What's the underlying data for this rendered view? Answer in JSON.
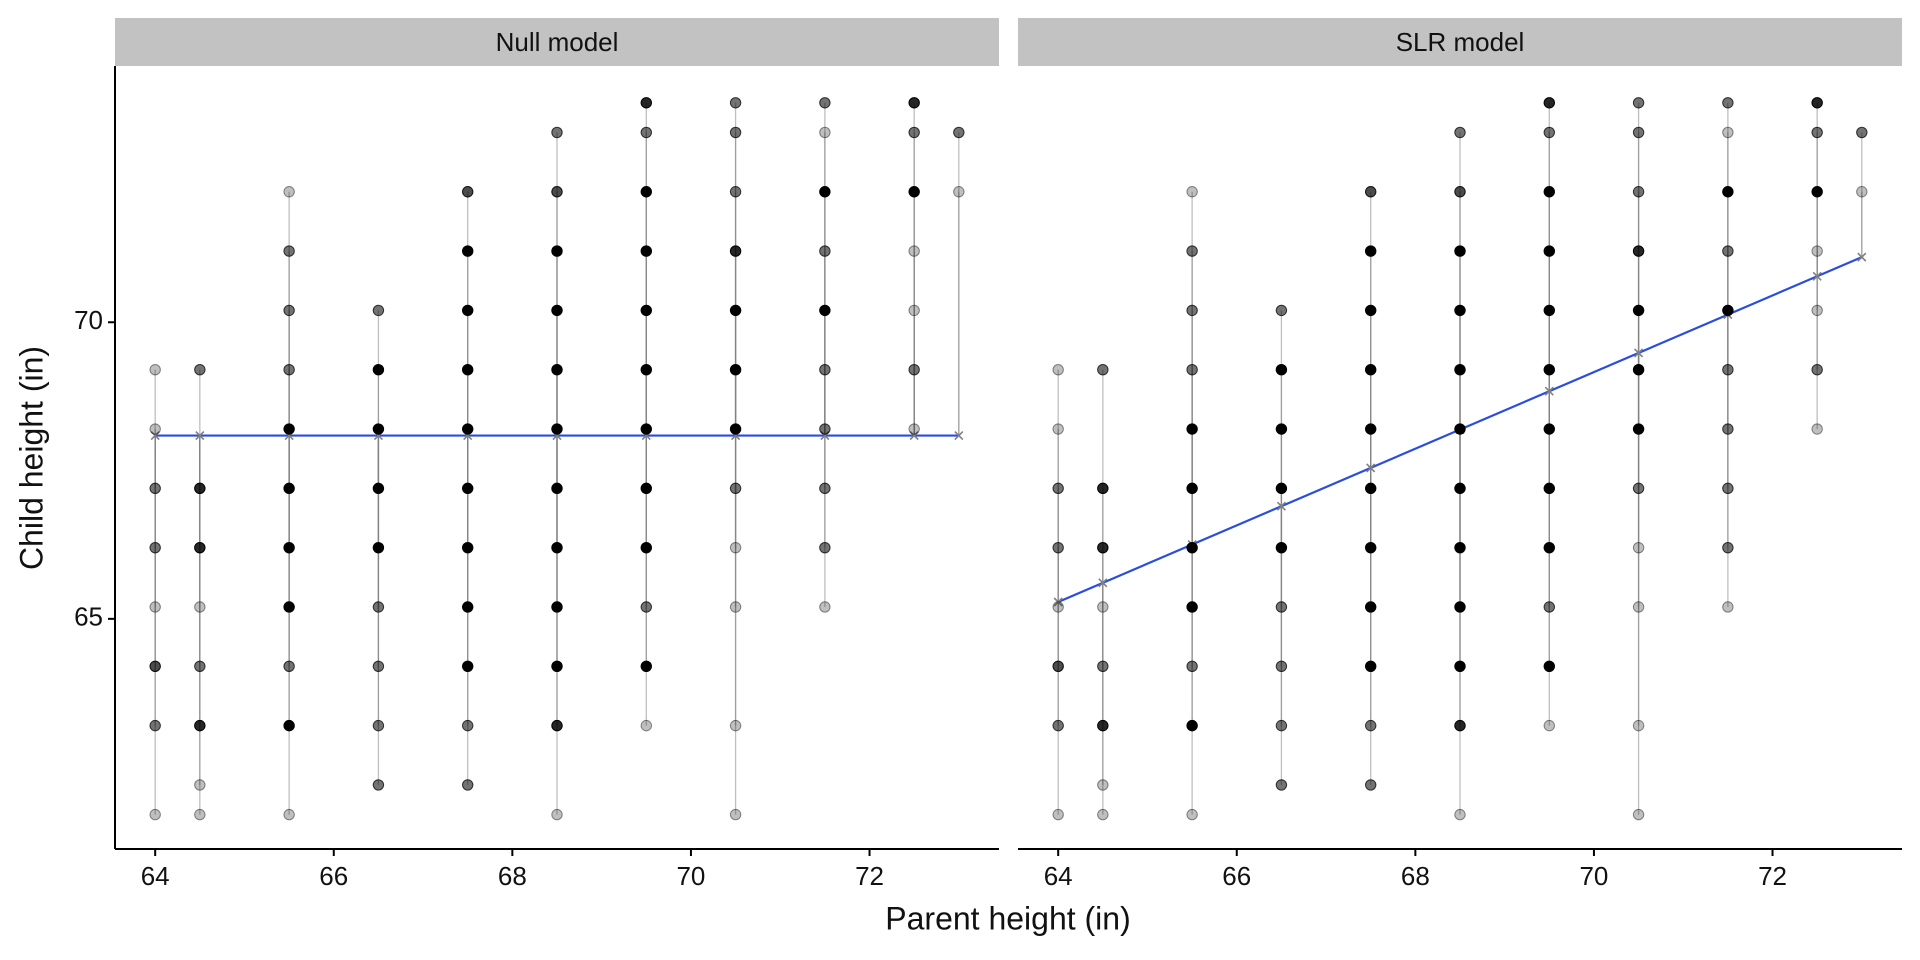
{
  "chart_data": {
    "type": "scatter",
    "x_label": "Parent height (in)",
    "y_label": "Child height (in)",
    "facets": [
      {
        "title": "Null model",
        "intercept": 68.09,
        "slope": 0
      },
      {
        "title": "SLR model",
        "intercept": 23.94,
        "slope": 0.646
      }
    ],
    "line_color": "#2a4de0",
    "point_color": "#000000",
    "residual_color": "#808080",
    "xlim": [
      63.55,
      73.45
    ],
    "ylim": [
      61.12,
      74.32
    ],
    "xticks": [
      64,
      66,
      68,
      70,
      72
    ],
    "yticks": [
      65,
      70
    ],
    "points": {
      "x": [
        64,
        64,
        64,
        64,
        64,
        64,
        64,
        64,
        64.5,
        64.5,
        64.5,
        64.5,
        64.5,
        64.5,
        64.5,
        64.5,
        65.5,
        65.5,
        65.5,
        65.5,
        65.5,
        65.5,
        65.5,
        65.5,
        65.5,
        65.5,
        65.5,
        66.5,
        66.5,
        66.5,
        66.5,
        66.5,
        66.5,
        66.5,
        66.5,
        66.5,
        67.5,
        67.5,
        67.5,
        67.5,
        67.5,
        67.5,
        67.5,
        67.5,
        67.5,
        67.5,
        67.5,
        68.5,
        68.5,
        68.5,
        68.5,
        68.5,
        68.5,
        68.5,
        68.5,
        68.5,
        68.5,
        68.5,
        68.5,
        69.5,
        69.5,
        69.5,
        69.5,
        69.5,
        69.5,
        69.5,
        69.5,
        69.5,
        69.5,
        69.5,
        69.5,
        70.5,
        70.5,
        70.5,
        70.5,
        70.5,
        70.5,
        70.5,
        70.5,
        70.5,
        70.5,
        70.5,
        70.5,
        71.5,
        71.5,
        71.5,
        71.5,
        71.5,
        71.5,
        71.5,
        71.5,
        71.5,
        71.5,
        72.5,
        72.5,
        72.5,
        72.5,
        72.5,
        72.5,
        72.5,
        73,
        73
      ],
      "y": [
        69.2,
        68.2,
        67.2,
        66.2,
        65.2,
        64.2,
        63.2,
        61.7,
        69.2,
        67.2,
        66.2,
        65.2,
        64.2,
        63.2,
        62.2,
        61.7,
        72.2,
        71.2,
        70.2,
        69.2,
        68.2,
        67.2,
        66.2,
        65.2,
        64.2,
        63.2,
        61.7,
        70.2,
        69.2,
        68.2,
        67.2,
        66.2,
        65.2,
        64.2,
        63.2,
        62.2,
        72.2,
        71.2,
        70.2,
        69.2,
        68.2,
        67.2,
        66.2,
        65.2,
        64.2,
        63.2,
        62.2,
        73.2,
        72.2,
        71.2,
        70.2,
        69.2,
        68.2,
        67.2,
        66.2,
        65.2,
        64.2,
        63.2,
        61.7,
        73.7,
        73.2,
        72.2,
        71.2,
        70.2,
        69.2,
        68.2,
        67.2,
        66.2,
        65.2,
        64.2,
        63.2,
        73.7,
        73.2,
        72.2,
        71.2,
        70.2,
        69.2,
        68.2,
        67.2,
        66.2,
        65.2,
        63.2,
        61.7,
        73.7,
        73.2,
        72.2,
        71.2,
        70.2,
        69.2,
        68.2,
        67.2,
        66.2,
        65.2,
        73.7,
        73.2,
        72.2,
        71.2,
        70.2,
        69.2,
        68.2,
        73.2,
        72.2
      ],
      "alpha": [
        0.25,
        0.25,
        0.55,
        0.55,
        0.25,
        0.7,
        0.55,
        0.25,
        0.55,
        0.85,
        0.85,
        0.25,
        0.55,
        0.85,
        0.25,
        0.25,
        0.25,
        0.55,
        0.55,
        0.55,
        1,
        1,
        1,
        1,
        0.55,
        1,
        0.25,
        0.55,
        1,
        1,
        1,
        1,
        0.55,
        0.55,
        0.55,
        0.55,
        0.7,
        1,
        1,
        1,
        1,
        1,
        1,
        1,
        1,
        0.55,
        0.55,
        0.55,
        0.7,
        1,
        1,
        1,
        1,
        1,
        1,
        1,
        1,
        0.85,
        0.25,
        0.85,
        0.55,
        1,
        1,
        1,
        1,
        1,
        1,
        1,
        0.55,
        1,
        0.25,
        0.55,
        0.55,
        0.55,
        0.85,
        1,
        1,
        1,
        0.55,
        0.25,
        0.25,
        0.25,
        0.25,
        0.55,
        0.25,
        1,
        0.55,
        1,
        0.55,
        0.55,
        0.55,
        0.55,
        0.25,
        0.85,
        0.55,
        1,
        0.25,
        0.25,
        0.55,
        0.25,
        0.55,
        0.25
      ]
    }
  }
}
